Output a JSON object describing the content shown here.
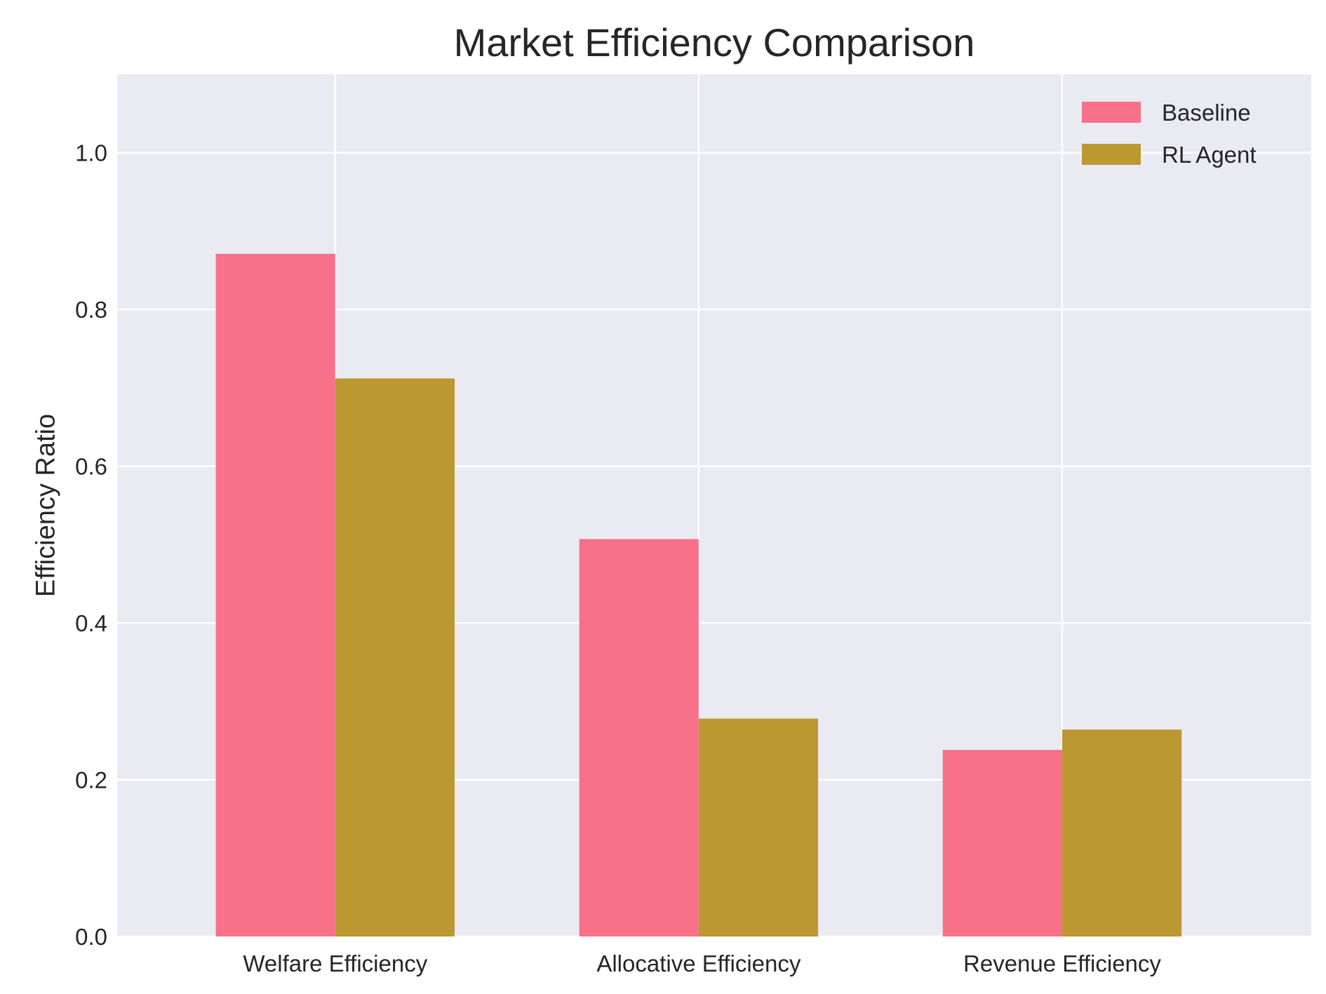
{
  "chart_data": {
    "type": "bar",
    "title": "Market Efficiency Comparison",
    "xlabel": "",
    "ylabel": "Efficiency Ratio",
    "categories": [
      "Welfare Efficiency",
      "Allocative Efficiency",
      "Revenue Efficiency"
    ],
    "series": [
      {
        "name": "Baseline",
        "color": "#f77189",
        "values": [
          0.871,
          0.507,
          0.238
        ]
      },
      {
        "name": "RL Agent",
        "color": "#bb9832",
        "values": [
          0.712,
          0.278,
          0.264
        ]
      }
    ],
    "ylim": [
      0,
      1.1
    ],
    "yticks": [
      "0.0",
      "0.2",
      "0.4",
      "0.6",
      "0.8",
      "1.0"
    ],
    "grid": true,
    "legend_position": "top-right",
    "background_color": "#eaeaf2"
  }
}
